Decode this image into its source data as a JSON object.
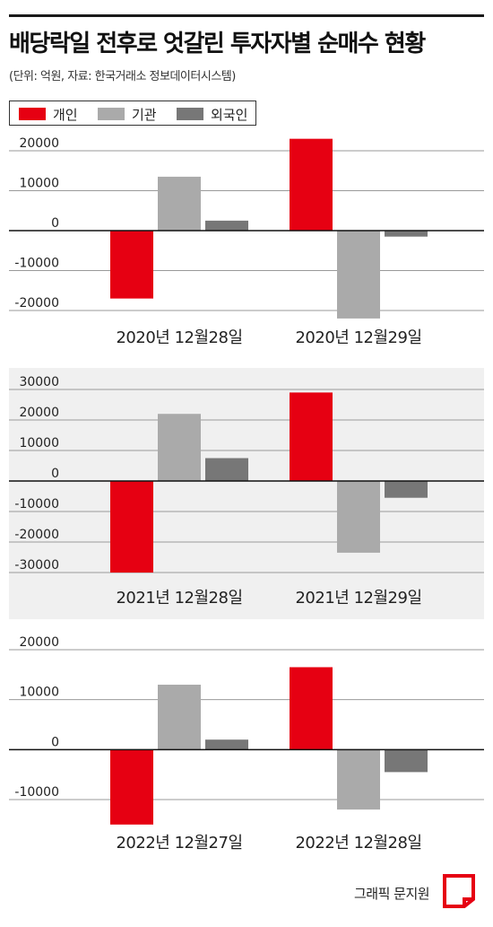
{
  "title": "배당락일 전후로 엇갈린 투자자별 순매수 현황",
  "subtitle": "(단위: 억원, 자료: 한국거래소 정보데이터시스템)",
  "legend": [
    {
      "label": "개인",
      "color": "#e60012"
    },
    {
      "label": "기관",
      "color": "#aaaaaa"
    },
    {
      "label": "외국인",
      "color": "#777777"
    }
  ],
  "footer": {
    "credit": "그래픽 문지원"
  },
  "chart_data": [
    {
      "type": "bar",
      "categories": [
        "2020년 12월28일",
        "2020년 12월29일"
      ],
      "series": [
        {
          "name": "개인",
          "values": [
            -17000,
            23000
          ]
        },
        {
          "name": "기관",
          "values": [
            13500,
            -22000
          ]
        },
        {
          "name": "외국인",
          "values": [
            2500,
            -1500
          ]
        }
      ],
      "yticks": [
        20000,
        10000,
        0,
        -10000,
        -20000
      ],
      "ylim": [
        -22000,
        23000
      ],
      "grid": true
    },
    {
      "type": "bar",
      "categories": [
        "2021년 12월28일",
        "2021년 12월29일"
      ],
      "series": [
        {
          "name": "개인",
          "values": [
            -30000,
            29000
          ]
        },
        {
          "name": "기관",
          "values": [
            22000,
            -23500
          ]
        },
        {
          "name": "외국인",
          "values": [
            7500,
            -5500
          ]
        }
      ],
      "yticks": [
        30000,
        20000,
        10000,
        0,
        -10000,
        -20000,
        -30000
      ],
      "ylim": [
        -30000,
        30000
      ],
      "grid": true
    },
    {
      "type": "bar",
      "categories": [
        "2022년 12월27일",
        "2022년 12월28일"
      ],
      "series": [
        {
          "name": "개인",
          "values": [
            -15000,
            16500
          ]
        },
        {
          "name": "기관",
          "values": [
            13000,
            -12000
          ]
        },
        {
          "name": "외국인",
          "values": [
            2000,
            -4500
          ]
        }
      ],
      "yticks": [
        20000,
        10000,
        0,
        -10000
      ],
      "ylim": [
        -15000,
        16500
      ],
      "grid": true
    }
  ]
}
